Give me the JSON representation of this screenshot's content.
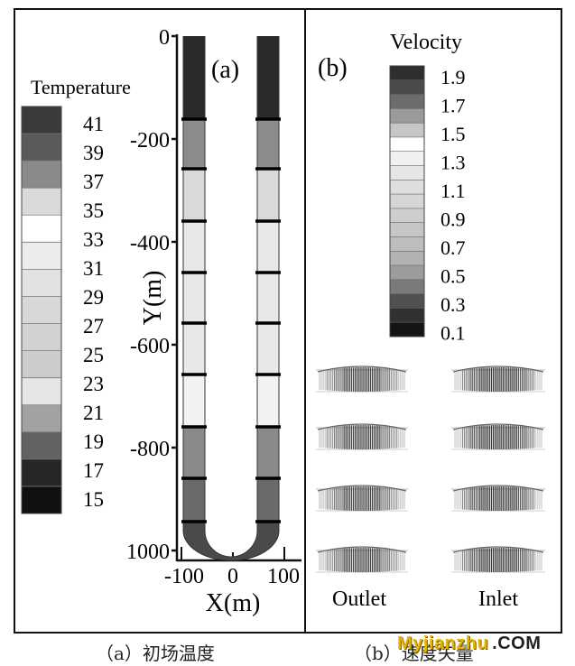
{
  "panel_a": {
    "label": "(a)",
    "legend_title": "Temperature",
    "legend_labels": [
      "41",
      "39",
      "37",
      "35",
      "33",
      "31",
      "29",
      "27",
      "25",
      "23",
      "21",
      "19",
      "17",
      "15"
    ],
    "legend_colors": [
      "#3a3a3a",
      "#5a5a5a",
      "#8a8a8a",
      "#dadada",
      "#ffffff",
      "#ececec",
      "#e2e2e2",
      "#d8d8d8",
      "#d2d2d2",
      "#cccccc",
      "#e6e6e6",
      "#a2a2a2",
      "#626262",
      "#262626",
      "#101010"
    ],
    "y_axis_label": "Y(m)",
    "y_ticks": [
      "0",
      "-200",
      "-400",
      "-600",
      "-800",
      "1000"
    ],
    "x_axis_label": "X(m)",
    "x_ticks": [
      "-100",
      "0",
      "100"
    ]
  },
  "panel_b": {
    "label": "(b)",
    "legend_title": "Velocity",
    "legend_labels": [
      "1.9",
      "1.7",
      "1.5",
      "1.3",
      "1.1",
      "0.9",
      "0.7",
      "0.5",
      "0.3",
      "0.1"
    ],
    "legend_colors": [
      "#2e2e2e",
      "#4a4a4a",
      "#6c6c6c",
      "#9a9a9a",
      "#c6c6c6",
      "#ffffff",
      "#f0f0f0",
      "#e6e6e6",
      "#dedede",
      "#d6d6d6",
      "#cecece",
      "#c6c6c6",
      "#bdbdbd",
      "#b2b2b2",
      "#9c9c9c",
      "#7a7a7a",
      "#505050",
      "#303030",
      "#141414"
    ],
    "outlet_label": "Outlet",
    "inlet_label": "Inlet"
  },
  "captions": {
    "a": "（a）初场温度",
    "b": "（b）速度矢量"
  },
  "watermark": {
    "text": "Myjianzhu",
    "suffix": ".COM"
  }
}
